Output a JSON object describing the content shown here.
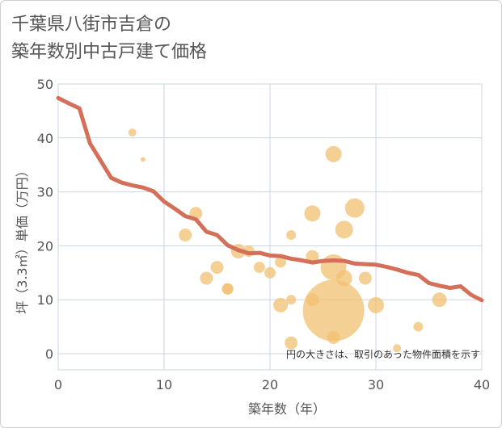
{
  "title_line1": "千葉県八街市吉倉の",
  "title_line2": "築年数別中古戸建て価格",
  "note": "円の大きさは、取引のあった物件面積を示す",
  "colors": {
    "line": "#d4705a",
    "bubble": "#f2c071",
    "grid": "#c9d4e0",
    "text": "#555555"
  },
  "chart_data": {
    "type": "scatter",
    "xlabel": "築年数（年）",
    "ylabel": "坪（3.3㎡）単価（万円）",
    "xlim": [
      0,
      40
    ],
    "ylim": [
      -3,
      50
    ],
    "xticks": [
      0,
      10,
      20,
      30,
      40
    ],
    "yticks": [
      0,
      10,
      20,
      30,
      40,
      50
    ],
    "grid": true,
    "bubbles": [
      {
        "x": 7,
        "y": 41,
        "r": 5
      },
      {
        "x": 8,
        "y": 36,
        "r": 3
      },
      {
        "x": 12,
        "y": 22,
        "r": 8
      },
      {
        "x": 13,
        "y": 26,
        "r": 8
      },
      {
        "x": 14,
        "y": 14,
        "r": 8
      },
      {
        "x": 15,
        "y": 16,
        "r": 8
      },
      {
        "x": 16,
        "y": 12,
        "r": 7
      },
      {
        "x": 16,
        "y": 12,
        "r": 7
      },
      {
        "x": 17,
        "y": 19,
        "r": 9
      },
      {
        "x": 18,
        "y": 19,
        "r": 7
      },
      {
        "x": 19,
        "y": 16,
        "r": 7
      },
      {
        "x": 20,
        "y": 15,
        "r": 7
      },
      {
        "x": 21,
        "y": 17,
        "r": 7
      },
      {
        "x": 21,
        "y": 9,
        "r": 9
      },
      {
        "x": 22,
        "y": 22,
        "r": 6
      },
      {
        "x": 22,
        "y": 10,
        "r": 6
      },
      {
        "x": 22,
        "y": 2,
        "r": 8
      },
      {
        "x": 24,
        "y": 26,
        "r": 10
      },
      {
        "x": 24,
        "y": 18,
        "r": 8
      },
      {
        "x": 24,
        "y": 10,
        "r": 8
      },
      {
        "x": 26,
        "y": 37,
        "r": 10
      },
      {
        "x": 26,
        "y": 16,
        "r": 16
      },
      {
        "x": 26,
        "y": 8,
        "r": 38
      },
      {
        "x": 26,
        "y": 3,
        "r": 8
      },
      {
        "x": 27,
        "y": 23,
        "r": 11
      },
      {
        "x": 27,
        "y": 14,
        "r": 10
      },
      {
        "x": 28,
        "y": 27,
        "r": 12
      },
      {
        "x": 29,
        "y": 14,
        "r": 8
      },
      {
        "x": 30,
        "y": 9,
        "r": 10
      },
      {
        "x": 32,
        "y": 1,
        "r": 5
      },
      {
        "x": 34,
        "y": 5,
        "r": 6
      },
      {
        "x": 36,
        "y": 10,
        "r": 9
      }
    ],
    "trend_line": {
      "x": [
        0,
        1,
        2,
        3,
        4,
        5,
        6,
        7,
        8,
        9,
        10,
        11,
        12,
        13,
        14,
        15,
        16,
        17,
        18,
        19,
        20,
        21,
        22,
        23,
        24,
        25,
        26,
        27,
        28,
        29,
        30,
        31,
        32,
        33,
        34,
        35,
        36,
        37,
        38,
        39,
        40
      ],
      "y": [
        47.4,
        46.4,
        45.5,
        39.0,
        35.8,
        32.6,
        31.7,
        31.2,
        30.8,
        30.1,
        28.2,
        26.9,
        25.5,
        24.9,
        22.6,
        22.0,
        20.1,
        19.2,
        18.6,
        18.7,
        18.2,
        18.1,
        17.6,
        17.3,
        16.9,
        17.2,
        17.3,
        17.2,
        16.7,
        16.6,
        16.5,
        16.1,
        15.6,
        15.0,
        14.6,
        13.1,
        12.6,
        12.2,
        12.5,
        10.9,
        9.9
      ]
    }
  }
}
